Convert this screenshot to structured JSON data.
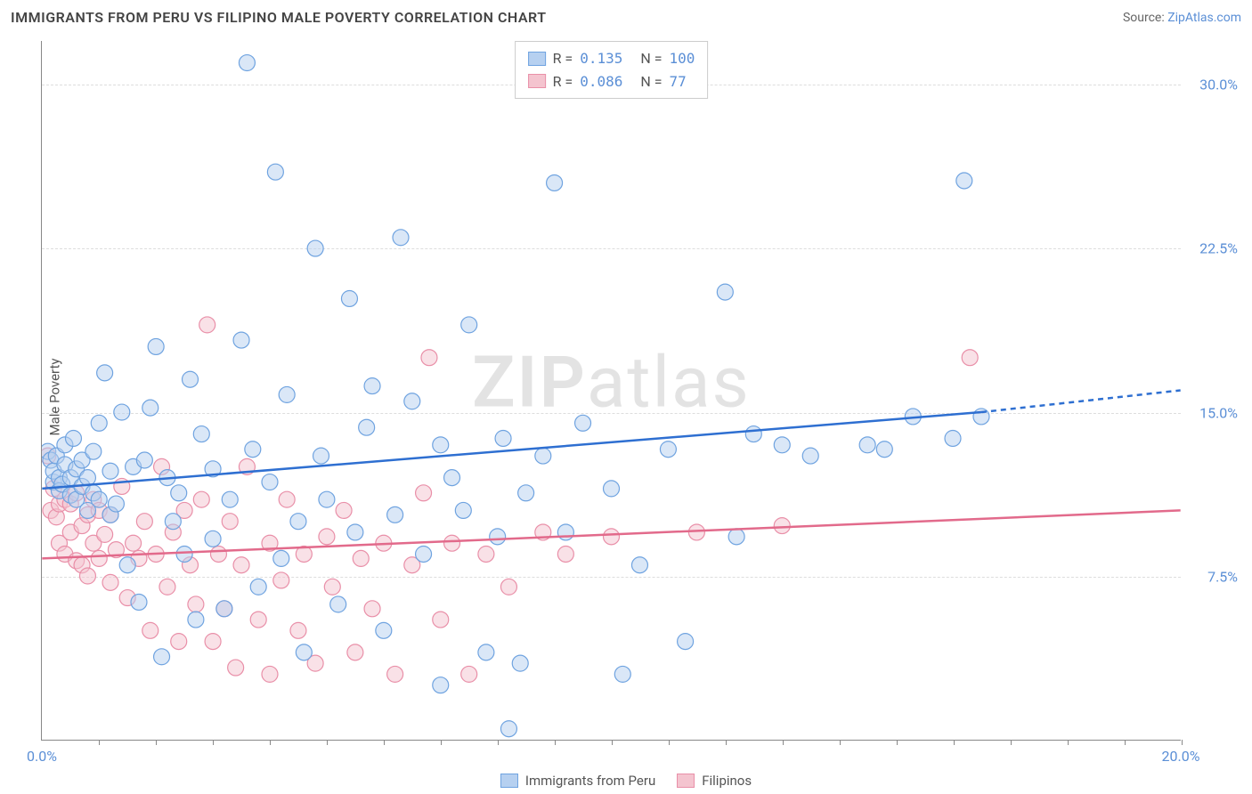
{
  "title": "IMMIGRANTS FROM PERU VS FILIPINO MALE POVERTY CORRELATION CHART",
  "source_prefix": "Source: ",
  "source_name": "ZipAtlas.com",
  "ylabel": "Male Poverty",
  "watermark_bold": "ZIP",
  "watermark_light": "atlas",
  "chart": {
    "type": "scatter",
    "background_color": "#ffffff",
    "grid_color": "#dddddd",
    "axis_color": "#888888",
    "tick_label_color": "#5b8fd6",
    "xlim": [
      0,
      20
    ],
    "ylim": [
      0,
      32
    ],
    "yticks": [
      7.5,
      15.0,
      22.5,
      30.0
    ],
    "ytick_labels": [
      "7.5%",
      "15.0%",
      "22.5%",
      "30.0%"
    ],
    "xticks_minor": [
      1,
      2,
      3,
      4,
      5,
      6,
      7,
      8,
      9,
      10,
      11,
      12,
      13,
      14,
      15,
      16,
      17,
      18,
      19,
      20
    ],
    "xtick_labels": {
      "0": "0.0%",
      "20": "20.0%"
    },
    "marker_radius": 9,
    "marker_opacity": 0.5,
    "line_width": 2.5
  },
  "series": {
    "a": {
      "label": "Immigrants from Peru",
      "color_fill": "#b6d0f0",
      "color_stroke": "#6fa3e0",
      "line_color": "#2e6fd1",
      "R": "0.135",
      "N": "100",
      "trend": {
        "x1": 0,
        "y1": 11.5,
        "x2": 16.5,
        "y2": 15.0,
        "x2_dash": 20,
        "y2_dash": 16.0
      },
      "points": [
        [
          0.1,
          13.2
        ],
        [
          0.15,
          12.8
        ],
        [
          0.2,
          11.8
        ],
        [
          0.2,
          12.3
        ],
        [
          0.25,
          13.0
        ],
        [
          0.3,
          12.0
        ],
        [
          0.3,
          11.4
        ],
        [
          0.35,
          11.7
        ],
        [
          0.4,
          12.6
        ],
        [
          0.4,
          13.5
        ],
        [
          0.5,
          12.0
        ],
        [
          0.5,
          11.2
        ],
        [
          0.55,
          13.8
        ],
        [
          0.6,
          12.4
        ],
        [
          0.6,
          11.0
        ],
        [
          0.7,
          11.6
        ],
        [
          0.7,
          12.8
        ],
        [
          0.8,
          10.5
        ],
        [
          0.8,
          12.0
        ],
        [
          0.9,
          11.3
        ],
        [
          0.9,
          13.2
        ],
        [
          1.0,
          11.0
        ],
        [
          1.0,
          14.5
        ],
        [
          1.1,
          16.8
        ],
        [
          1.2,
          10.3
        ],
        [
          1.2,
          12.3
        ],
        [
          1.3,
          10.8
        ],
        [
          1.4,
          15.0
        ],
        [
          1.5,
          8.0
        ],
        [
          1.6,
          12.5
        ],
        [
          1.7,
          6.3
        ],
        [
          1.8,
          12.8
        ],
        [
          1.9,
          15.2
        ],
        [
          2.0,
          18.0
        ],
        [
          2.1,
          3.8
        ],
        [
          2.2,
          12.0
        ],
        [
          2.3,
          10.0
        ],
        [
          2.4,
          11.3
        ],
        [
          2.5,
          8.5
        ],
        [
          2.6,
          16.5
        ],
        [
          2.7,
          5.5
        ],
        [
          2.8,
          14.0
        ],
        [
          3.0,
          9.2
        ],
        [
          3.0,
          12.4
        ],
        [
          3.2,
          6.0
        ],
        [
          3.3,
          11.0
        ],
        [
          3.5,
          18.3
        ],
        [
          3.6,
          31.0
        ],
        [
          3.7,
          13.3
        ],
        [
          3.8,
          7.0
        ],
        [
          4.0,
          11.8
        ],
        [
          4.1,
          26.0
        ],
        [
          4.2,
          8.3
        ],
        [
          4.3,
          15.8
        ],
        [
          4.5,
          10.0
        ],
        [
          4.6,
          4.0
        ],
        [
          4.8,
          22.5
        ],
        [
          4.9,
          13.0
        ],
        [
          5.0,
          11.0
        ],
        [
          5.2,
          6.2
        ],
        [
          5.4,
          20.2
        ],
        [
          5.5,
          9.5
        ],
        [
          5.7,
          14.3
        ],
        [
          5.8,
          16.2
        ],
        [
          6.0,
          5.0
        ],
        [
          6.2,
          10.3
        ],
        [
          6.3,
          23.0
        ],
        [
          6.5,
          15.5
        ],
        [
          6.7,
          8.5
        ],
        [
          7.0,
          13.5
        ],
        [
          7.0,
          2.5
        ],
        [
          7.2,
          12.0
        ],
        [
          7.4,
          10.5
        ],
        [
          7.5,
          19.0
        ],
        [
          7.8,
          4.0
        ],
        [
          8.0,
          9.3
        ],
        [
          8.1,
          13.8
        ],
        [
          8.2,
          0.5
        ],
        [
          8.4,
          3.5
        ],
        [
          8.5,
          11.3
        ],
        [
          8.8,
          13.0
        ],
        [
          9.0,
          25.5
        ],
        [
          9.2,
          9.5
        ],
        [
          9.5,
          14.5
        ],
        [
          10.0,
          11.5
        ],
        [
          10.2,
          3.0
        ],
        [
          10.5,
          8.0
        ],
        [
          11.0,
          13.3
        ],
        [
          11.3,
          4.5
        ],
        [
          12.0,
          20.5
        ],
        [
          12.2,
          9.3
        ],
        [
          12.5,
          14.0
        ],
        [
          13.0,
          13.5
        ],
        [
          13.5,
          13.0
        ],
        [
          14.5,
          13.5
        ],
        [
          14.8,
          13.3
        ],
        [
          15.3,
          14.8
        ],
        [
          16.0,
          13.8
        ],
        [
          16.2,
          25.6
        ],
        [
          16.5,
          14.8
        ]
      ]
    },
    "b": {
      "label": "Filipinos",
      "color_fill": "#f4c4cf",
      "color_stroke": "#e98fa8",
      "line_color": "#e26a8b",
      "R": "0.086",
      "N": "77",
      "trend": {
        "x1": 0,
        "y1": 8.3,
        "x2": 20,
        "y2": 10.5
      },
      "points": [
        [
          0.1,
          13.0
        ],
        [
          0.15,
          10.5
        ],
        [
          0.2,
          11.5
        ],
        [
          0.25,
          10.2
        ],
        [
          0.3,
          9.0
        ],
        [
          0.3,
          10.8
        ],
        [
          0.4,
          8.5
        ],
        [
          0.4,
          11.0
        ],
        [
          0.5,
          9.5
        ],
        [
          0.5,
          10.8
        ],
        [
          0.6,
          8.2
        ],
        [
          0.6,
          11.3
        ],
        [
          0.7,
          9.8
        ],
        [
          0.7,
          8.0
        ],
        [
          0.8,
          10.3
        ],
        [
          0.8,
          7.5
        ],
        [
          0.9,
          9.0
        ],
        [
          0.9,
          11.0
        ],
        [
          1.0,
          10.5
        ],
        [
          1.0,
          8.3
        ],
        [
          1.1,
          9.4
        ],
        [
          1.2,
          7.2
        ],
        [
          1.2,
          10.3
        ],
        [
          1.3,
          8.7
        ],
        [
          1.4,
          11.6
        ],
        [
          1.5,
          6.5
        ],
        [
          1.6,
          9.0
        ],
        [
          1.7,
          8.3
        ],
        [
          1.8,
          10.0
        ],
        [
          1.9,
          5.0
        ],
        [
          2.0,
          8.5
        ],
        [
          2.1,
          12.5
        ],
        [
          2.2,
          7.0
        ],
        [
          2.3,
          9.5
        ],
        [
          2.4,
          4.5
        ],
        [
          2.5,
          10.5
        ],
        [
          2.6,
          8.0
        ],
        [
          2.7,
          6.2
        ],
        [
          2.8,
          11.0
        ],
        [
          2.9,
          19.0
        ],
        [
          3.0,
          4.5
        ],
        [
          3.1,
          8.5
        ],
        [
          3.2,
          6.0
        ],
        [
          3.3,
          10.0
        ],
        [
          3.4,
          3.3
        ],
        [
          3.5,
          8.0
        ],
        [
          3.6,
          12.5
        ],
        [
          3.8,
          5.5
        ],
        [
          4.0,
          9.0
        ],
        [
          4.0,
          3.0
        ],
        [
          4.2,
          7.3
        ],
        [
          4.3,
          11.0
        ],
        [
          4.5,
          5.0
        ],
        [
          4.6,
          8.5
        ],
        [
          4.8,
          3.5
        ],
        [
          5.0,
          9.3
        ],
        [
          5.1,
          7.0
        ],
        [
          5.3,
          10.5
        ],
        [
          5.5,
          4.0
        ],
        [
          5.6,
          8.3
        ],
        [
          5.8,
          6.0
        ],
        [
          6.0,
          9.0
        ],
        [
          6.2,
          3.0
        ],
        [
          6.5,
          8.0
        ],
        [
          6.7,
          11.3
        ],
        [
          6.8,
          17.5
        ],
        [
          7.0,
          5.5
        ],
        [
          7.2,
          9.0
        ],
        [
          7.5,
          3.0
        ],
        [
          7.8,
          8.5
        ],
        [
          8.2,
          7.0
        ],
        [
          8.8,
          9.5
        ],
        [
          9.2,
          8.5
        ],
        [
          10.0,
          9.3
        ],
        [
          11.5,
          9.5
        ],
        [
          13.0,
          9.8
        ],
        [
          16.3,
          17.5
        ]
      ]
    }
  },
  "legend_top": {
    "r_label": "R =",
    "n_label": "N ="
  }
}
